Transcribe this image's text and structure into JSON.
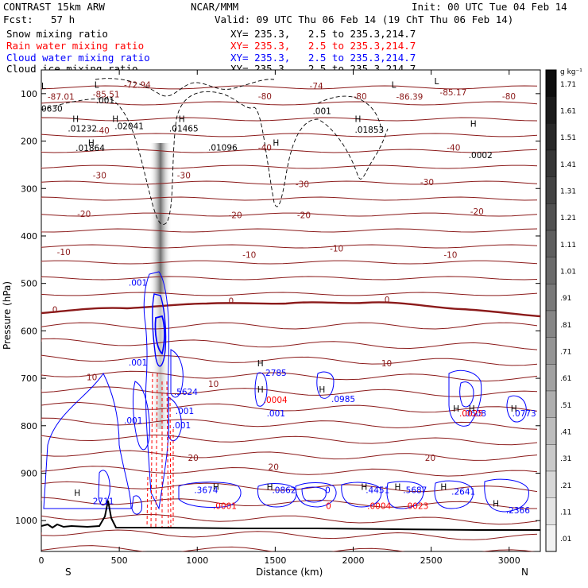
{
  "header": {
    "model": "CONTRAST 15km ARW",
    "center": "NCAR/MMM",
    "init": "Init: 00 UTC Tue 04 Feb 14",
    "fcst_label": "Fcst:",
    "fcst_value": "57 h",
    "valid": "Valid: 09 UTC Thu 06 Feb 14 (19 ChT Thu 06 Feb 14)",
    "fields": [
      {
        "name": "Snow mixing ratio",
        "xy": "XY= 235.3,   2.5 to 235.3,214.7",
        "color": "#000000"
      },
      {
        "name": "Rain water mixing ratio",
        "xy": "XY= 235.3,   2.5 to 235.3,214.7",
        "color": "#ff0000"
      },
      {
        "name": "Cloud water mixing ratio",
        "xy": "XY= 235.3,   2.5 to 235.3,214.7",
        "color": "#0000ff"
      },
      {
        "name": "Cloud ice mixing ratio",
        "xy": "XY= 235.3,   2.5 to 235.3,214.7",
        "color": "#000000"
      }
    ]
  },
  "chart_data": {
    "type": "cross-section",
    "xlabel": "Distance (km)",
    "ylabel": "Pressure (hPa)",
    "x_ticks": [
      0,
      500,
      1000,
      1500,
      2000,
      2500,
      3000
    ],
    "xlim": [
      0,
      3200
    ],
    "y_ticks": [
      100,
      200,
      300,
      400,
      500,
      600,
      700,
      800,
      900,
      1000
    ],
    "ylim": [
      50,
      1065
    ],
    "left_endpoint": "S",
    "right_endpoint": "N",
    "colorbar": {
      "unit": "g kg⁻¹",
      "labels": [
        "1.71",
        "1.61",
        "1.51",
        "1.41",
        "1.31",
        "1.21",
        "1.11",
        "1.01",
        ".91",
        ".81",
        ".71",
        ".61",
        ".51",
        ".41",
        ".31",
        ".21",
        ".11",
        ".01"
      ]
    },
    "temperature_labels": [
      {
        "x": 40,
        "p": 113,
        "text": "-87.01"
      },
      {
        "x": 330,
        "p": 108,
        "text": "-85.51"
      },
      {
        "x": 530,
        "p": 88,
        "text": "-72.94"
      },
      {
        "x": 2275,
        "p": 113,
        "text": "-86.39"
      },
      {
        "x": 2555,
        "p": 104,
        "text": "-85.17"
      },
      {
        "x": 1720,
        "p": 90,
        "text": "-74"
      },
      {
        "x": 2000,
        "p": 112,
        "text": "-80"
      },
      {
        "x": 1390,
        "p": 112,
        "text": "-80"
      },
      {
        "x": 2955,
        "p": 112,
        "text": "-80"
      },
      {
        "x": 350,
        "p": 184,
        "text": "-40"
      },
      {
        "x": 1390,
        "p": 220,
        "text": "-40"
      },
      {
        "x": 2600,
        "p": 220,
        "text": "-40"
      },
      {
        "x": 330,
        "p": 279,
        "text": "-30"
      },
      {
        "x": 870,
        "p": 279,
        "text": "-30"
      },
      {
        "x": 1630,
        "p": 297,
        "text": "-30"
      },
      {
        "x": 2430,
        "p": 293,
        "text": "-30"
      },
      {
        "x": 230,
        "p": 360,
        "text": "-20"
      },
      {
        "x": 1200,
        "p": 362,
        "text": "-20"
      },
      {
        "x": 1640,
        "p": 362,
        "text": "-20"
      },
      {
        "x": 2750,
        "p": 355,
        "text": "-20"
      },
      {
        "x": 100,
        "p": 440,
        "text": "-10"
      },
      {
        "x": 1290,
        "p": 446,
        "text": "-10"
      },
      {
        "x": 1850,
        "p": 433,
        "text": "-10"
      },
      {
        "x": 2580,
        "p": 446,
        "text": "-10"
      },
      {
        "x": 70,
        "p": 562,
        "text": "0"
      },
      {
        "x": 1200,
        "p": 543,
        "text": "0"
      },
      {
        "x": 2200,
        "p": 541,
        "text": "0"
      },
      {
        "x": 290,
        "p": 704,
        "text": "10"
      },
      {
        "x": 1070,
        "p": 718,
        "text": "10"
      },
      {
        "x": 2180,
        "p": 675,
        "text": "10"
      },
      {
        "x": 940,
        "p": 874,
        "text": "20"
      },
      {
        "x": 1455,
        "p": 893,
        "text": "20"
      },
      {
        "x": 2460,
        "p": 874,
        "text": "20"
      }
    ],
    "ice_labels": [
      {
        "x": 0,
        "p": 138,
        "text": "0630"
      },
      {
        "x": 350,
        "p": 120,
        "text": ".001"
      },
      {
        "x": 1740,
        "p": 143,
        "text": ".001"
      },
      {
        "x": 170,
        "p": 180,
        "text": ".01232"
      },
      {
        "x": 470,
        "p": 175,
        "text": ".02041"
      },
      {
        "x": 820,
        "p": 180,
        "text": ".01465"
      },
      {
        "x": 2010,
        "p": 182,
        "text": ".01853"
      },
      {
        "x": 2740,
        "p": 236,
        "text": ".0002"
      },
      {
        "x": 220,
        "p": 221,
        "text": ".01864"
      },
      {
        "x": 1070,
        "p": 220,
        "text": ".01096"
      }
    ],
    "cloud_water_labels": [
      {
        "x": 560,
        "p": 505,
        "text": ".001"
      },
      {
        "x": 560,
        "p": 673,
        "text": ".001"
      },
      {
        "x": 530,
        "p": 795,
        "text": ".001"
      },
      {
        "x": 850,
        "p": 735,
        "text": ".5624"
      },
      {
        "x": 860,
        "p": 775,
        "text": ".001"
      },
      {
        "x": 840,
        "p": 805,
        "text": ".001"
      },
      {
        "x": 1420,
        "p": 695,
        "text": ".2785"
      },
      {
        "x": 1445,
        "p": 780,
        "text": ".001"
      },
      {
        "x": 1860,
        "p": 750,
        "text": ".0985"
      },
      {
        "x": 2700,
        "p": 780,
        "text": ".0608"
      },
      {
        "x": 3020,
        "p": 780,
        "text": ".0773"
      },
      {
        "x": 330,
        "p": 965,
        "text": "2711"
      },
      {
        "x": 980,
        "p": 942,
        "text": ".3674"
      },
      {
        "x": 1480,
        "p": 942,
        "text": ".0862"
      },
      {
        "x": 1820,
        "p": 942,
        "text": "0"
      },
      {
        "x": 2080,
        "p": 942,
        "text": ".4451"
      },
      {
        "x": 2320,
        "p": 942,
        "text": ".5687"
      },
      {
        "x": 2630,
        "p": 945,
        "text": ".2641"
      },
      {
        "x": 2980,
        "p": 985,
        "text": ".2366"
      }
    ],
    "rain_labels": [
      {
        "x": 1425,
        "p": 752,
        "text": ".0004"
      },
      {
        "x": 2680,
        "p": 780,
        "text": ".0025"
      },
      {
        "x": 1100,
        "p": 975,
        "text": ".0001"
      },
      {
        "x": 1825,
        "p": 975,
        "text": "0"
      },
      {
        "x": 2090,
        "p": 975,
        "text": ".0004"
      },
      {
        "x": 2330,
        "p": 975,
        "text": ".0023"
      }
    ],
    "maxmin_marks": [
      {
        "x": 0,
        "p": 90,
        "text": "L"
      },
      {
        "x": 340,
        "p": 88,
        "text": "L"
      },
      {
        "x": 2245,
        "p": 88,
        "text": "L"
      },
      {
        "x": 2520,
        "p": 80,
        "text": "L"
      },
      {
        "x": 200,
        "p": 160,
        "text": "H"
      },
      {
        "x": 455,
        "p": 160,
        "text": "H"
      },
      {
        "x": 880,
        "p": 160,
        "text": "H"
      },
      {
        "x": 2010,
        "p": 160,
        "text": "H"
      },
      {
        "x": 2750,
        "p": 170,
        "text": "H"
      },
      {
        "x": 300,
        "p": 210,
        "text": "H"
      },
      {
        "x": 1485,
        "p": 210,
        "text": "H"
      },
      {
        "x": 1385,
        "p": 675,
        "text": "H"
      },
      {
        "x": 1385,
        "p": 730,
        "text": "H"
      },
      {
        "x": 1780,
        "p": 730,
        "text": "H"
      },
      {
        "x": 2640,
        "p": 770,
        "text": "H"
      },
      {
        "x": 2740,
        "p": 770,
        "text": "H"
      },
      {
        "x": 3010,
        "p": 770,
        "text": "H"
      },
      {
        "x": 210,
        "p": 948,
        "text": "H"
      },
      {
        "x": 1100,
        "p": 935,
        "text": "H"
      },
      {
        "x": 1445,
        "p": 935,
        "text": "H"
      },
      {
        "x": 2050,
        "p": 935,
        "text": "H"
      },
      {
        "x": 2265,
        "p": 935,
        "text": "H"
      },
      {
        "x": 2560,
        "p": 935,
        "text": "H"
      },
      {
        "x": 2895,
        "p": 970,
        "text": "H"
      }
    ],
    "colors": {
      "temperature": "#8b1a1a",
      "rain": "#ff0000",
      "cloud": "#0000ff",
      "ice": "#000000",
      "terrain": "#000000"
    }
  }
}
